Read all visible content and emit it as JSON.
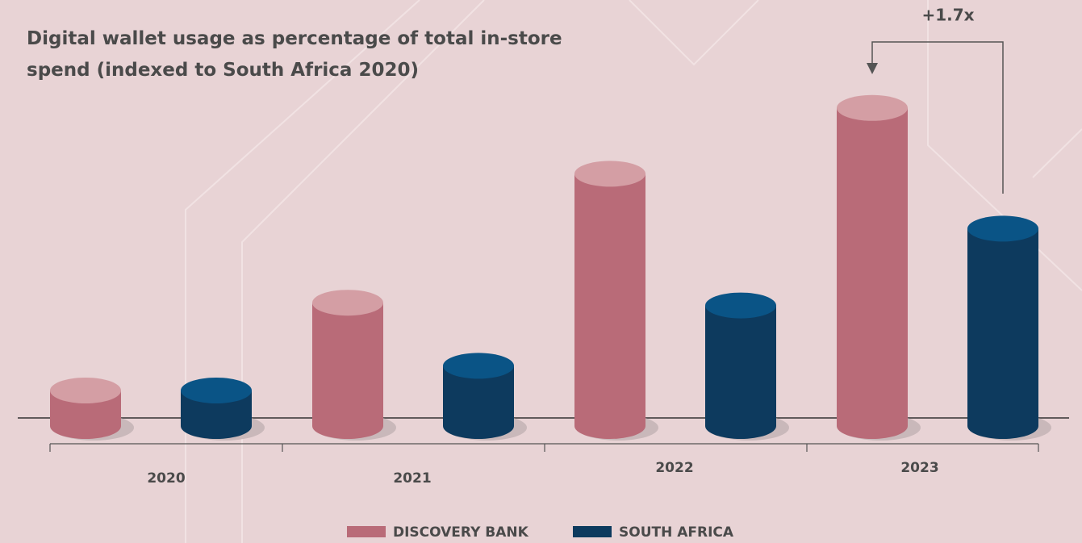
{
  "chart_data": {
    "type": "cylinder-bar",
    "title": "Digital wallet usage as percentage of total in-store spend (indexed to South Africa 2020)",
    "categories": [
      "2020",
      "2021",
      "2022",
      "2023"
    ],
    "series": [
      {
        "name": "DISCOVERY BANK",
        "color": "#b96b78",
        "top_color": "#d49ea4",
        "values": [
          1.0,
          4.2,
          8.9,
          11.3
        ]
      },
      {
        "name": "SOUTH AFRICA",
        "color": "#0d3a5e",
        "top_color": "#0a5486",
        "values": [
          1.0,
          1.9,
          4.1,
          6.9
        ]
      }
    ],
    "annotation": "+1.7x"
  }
}
